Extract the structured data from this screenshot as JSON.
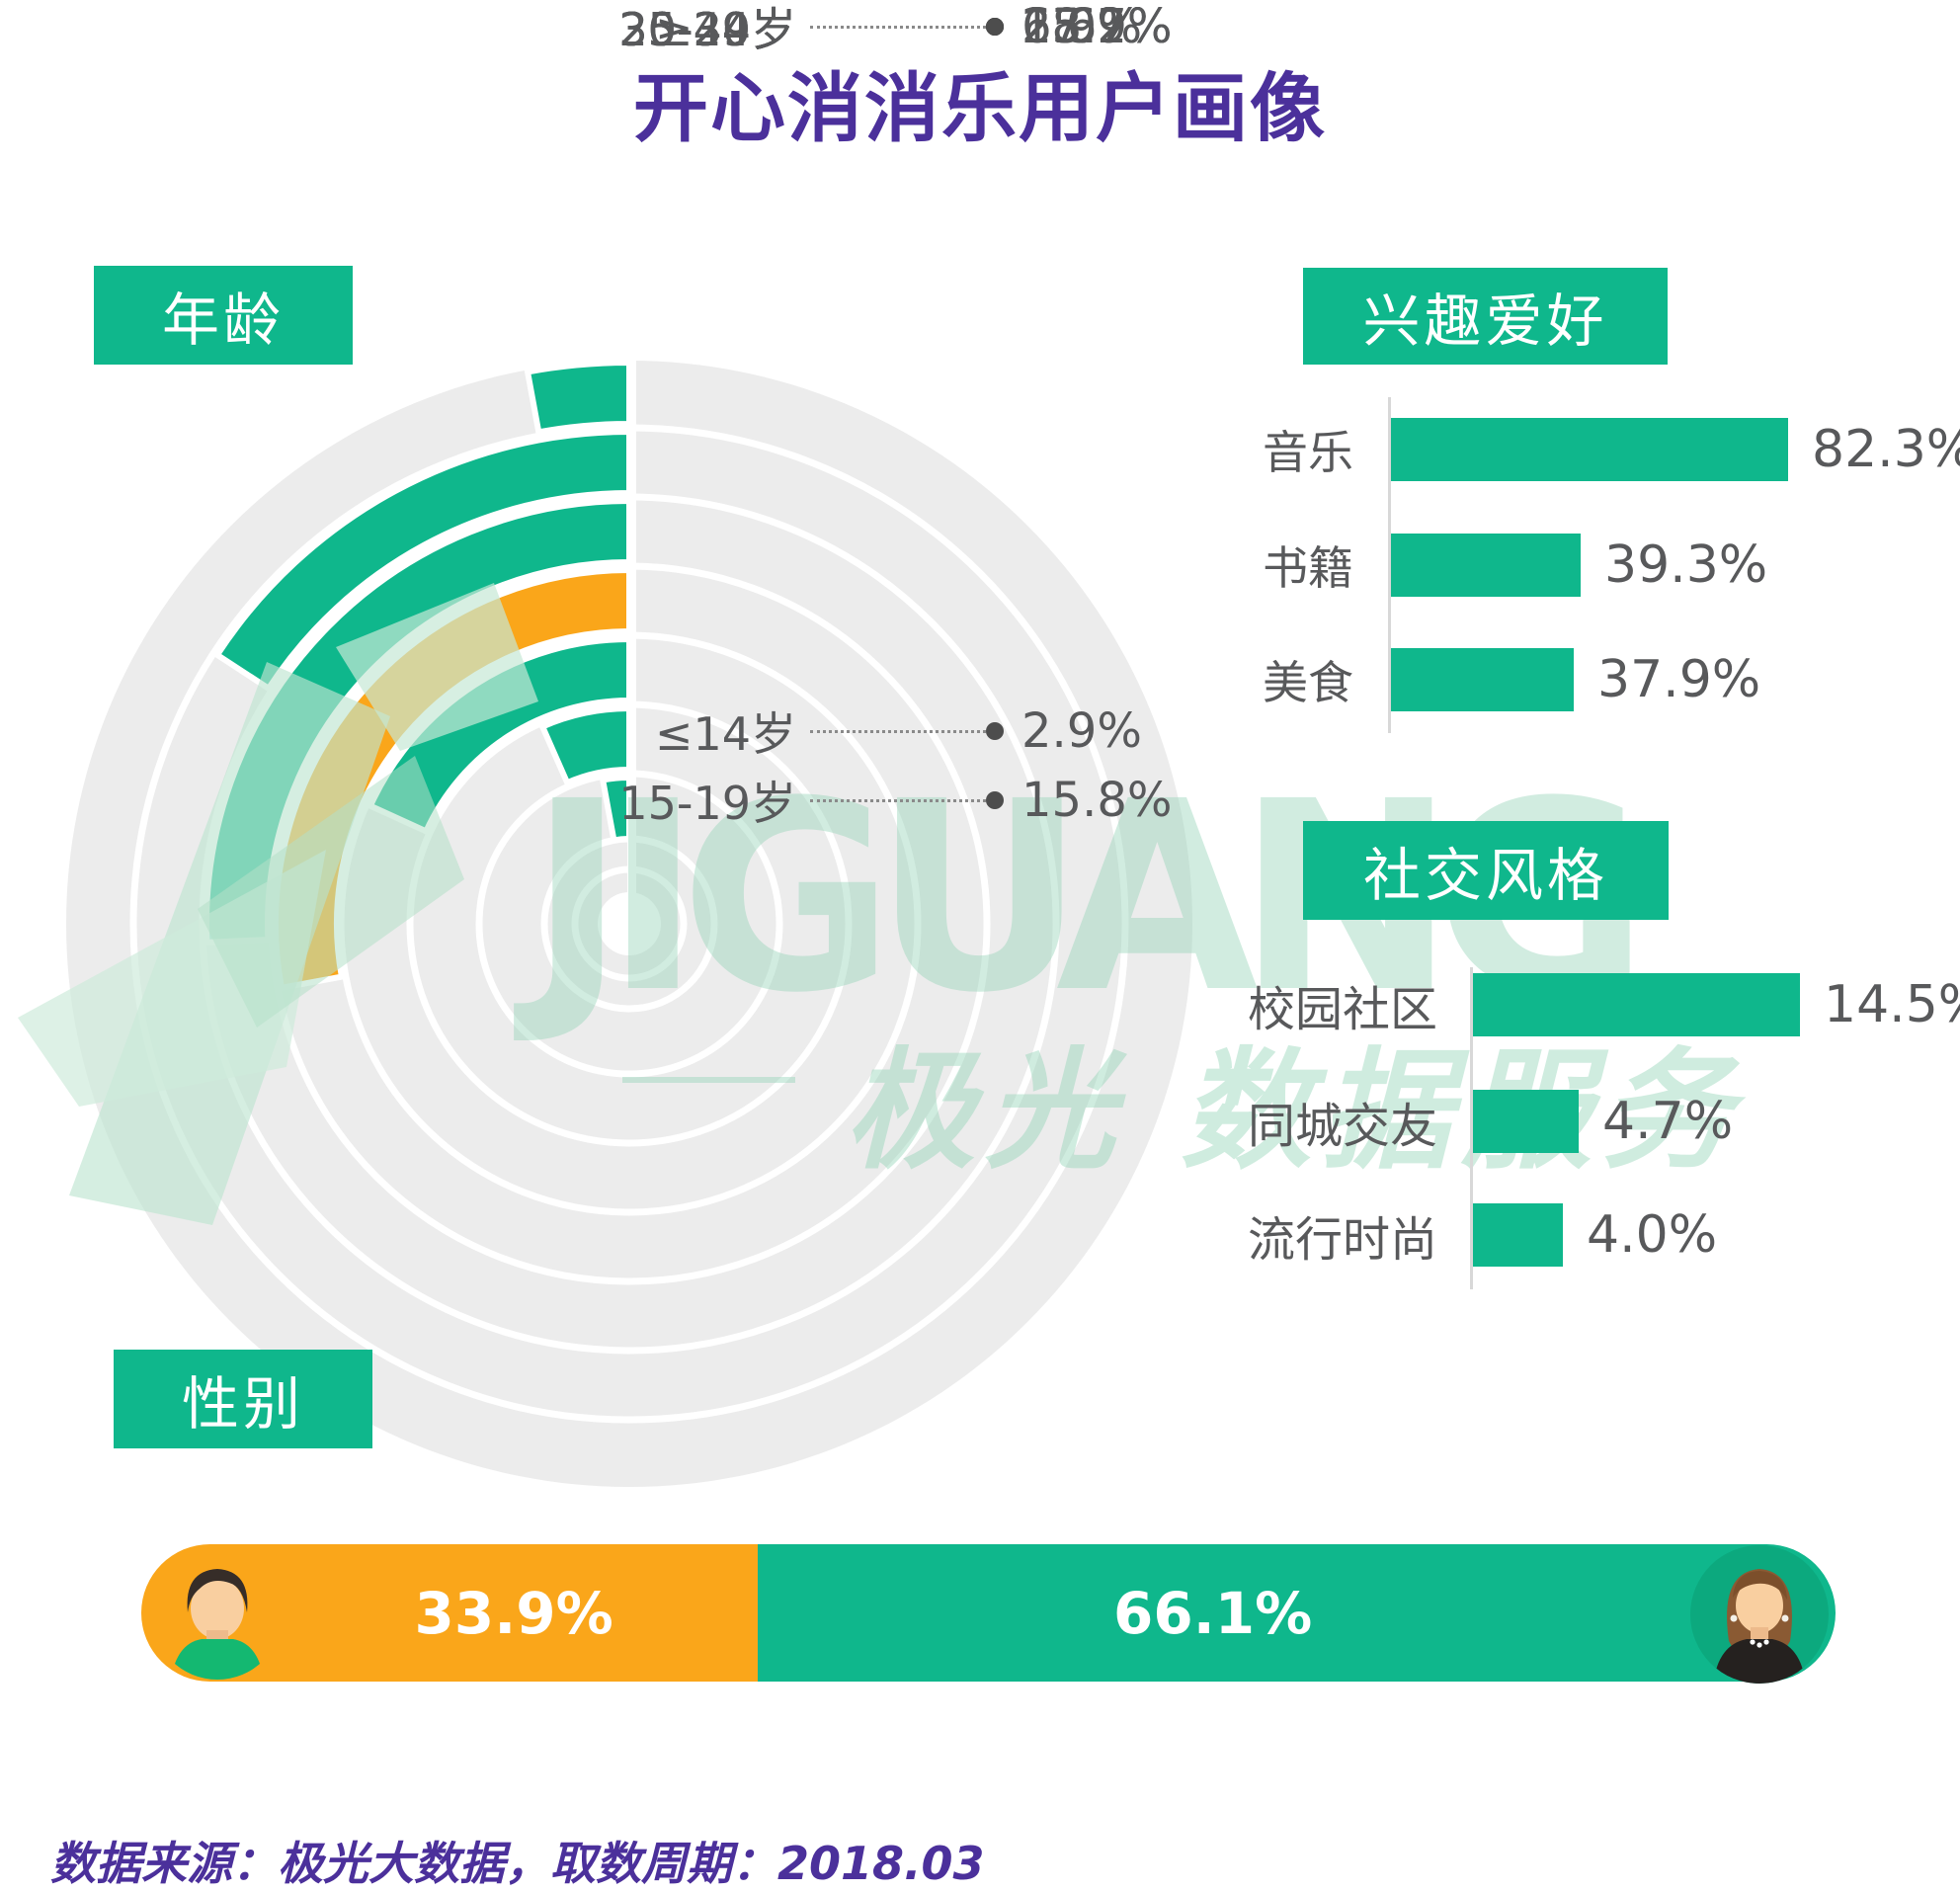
{
  "title": "开心消消乐用户画像",
  "colors": {
    "green": "#0FB78C",
    "orange": "#FAA61A",
    "purple": "#4B309B",
    "text_gray": "#58595B",
    "ring_gray": "#ECECEC",
    "watermark_green": "#8ED2B4"
  },
  "age": {
    "section_label": "年龄",
    "rows": [
      {
        "label": "≤14岁",
        "value": 2.9,
        "display": "2.9%"
      },
      {
        "label": "15-19岁",
        "value": 15.8,
        "display": "15.8%"
      },
      {
        "label": "20-24岁",
        "value": 25.7,
        "display": "25.7%"
      },
      {
        "label": "25-29岁",
        "value": 27.9,
        "display": "27.9%"
      },
      {
        "label": "30-34岁",
        "value": 18.2,
        "display": "18.2%"
      },
      {
        "label": "35-39岁",
        "value": 6.6,
        "display": "6.6%"
      },
      {
        "label": "≥40岁",
        "value": 2.9,
        "display": "2.9%"
      }
    ],
    "highlight_index": 3
  },
  "interests": {
    "section_label": "兴趣爱好",
    "bars": [
      {
        "label": "音乐",
        "value": 82.3,
        "display": "82.3%"
      },
      {
        "label": "书籍",
        "value": 39.3,
        "display": "39.3%"
      },
      {
        "label": "美食",
        "value": 37.9,
        "display": "37.9%"
      }
    ]
  },
  "social": {
    "section_label": "社交风格",
    "bars": [
      {
        "label": "校园社区",
        "value": 14.5,
        "display": "14.5%"
      },
      {
        "label": "同城交友",
        "value": 4.7,
        "display": "4.7%"
      },
      {
        "label": "流行时尚",
        "value": 4.0,
        "display": "4.0%"
      }
    ]
  },
  "gender": {
    "section_label": "性别",
    "male": {
      "value": 33.9,
      "display": "33.9%"
    },
    "female": {
      "value": 66.1,
      "display": "66.1%"
    }
  },
  "footer": {
    "text": "数据来源：极光大数据，取数周期：2018.03"
  },
  "watermark": {
    "brand": "JIGUANG",
    "cn": "极光 数据服务"
  },
  "chart_data": [
    {
      "type": "bar",
      "subtype": "radial-bar",
      "title": "年龄",
      "categories": [
        "≤14岁",
        "15-19岁",
        "20-24岁",
        "25-29岁",
        "30-34岁",
        "35-39岁",
        "≥40岁"
      ],
      "values": [
        2.9,
        15.8,
        25.7,
        27.9,
        18.2,
        6.6,
        2.9
      ],
      "unit": "%",
      "highlight_category": "25-29岁",
      "highlight_index": 3,
      "start_angle_deg": 0,
      "direction": "counterclockwise",
      "degrees_per_percent": 3.6,
      "rings_outermost_first": true
    },
    {
      "type": "bar",
      "orientation": "horizontal",
      "title": "兴趣爱好",
      "categories": [
        "音乐",
        "书籍",
        "美食"
      ],
      "values": [
        82.3,
        39.3,
        37.9
      ],
      "unit": "%",
      "xlim": [
        0,
        100
      ],
      "grid": false
    },
    {
      "type": "bar",
      "orientation": "horizontal",
      "title": "社交风格",
      "categories": [
        "校园社区",
        "同城交友",
        "流行时尚"
      ],
      "values": [
        14.5,
        4.7,
        4.0
      ],
      "unit": "%",
      "xlim": [
        0,
        15
      ],
      "grid": false
    },
    {
      "type": "bar",
      "subtype": "stacked-single",
      "title": "性别",
      "categories": [
        "男",
        "女"
      ],
      "values": [
        33.9,
        66.1
      ],
      "unit": "%",
      "colors": [
        "#FAA61A",
        "#0FB78C"
      ]
    }
  ]
}
